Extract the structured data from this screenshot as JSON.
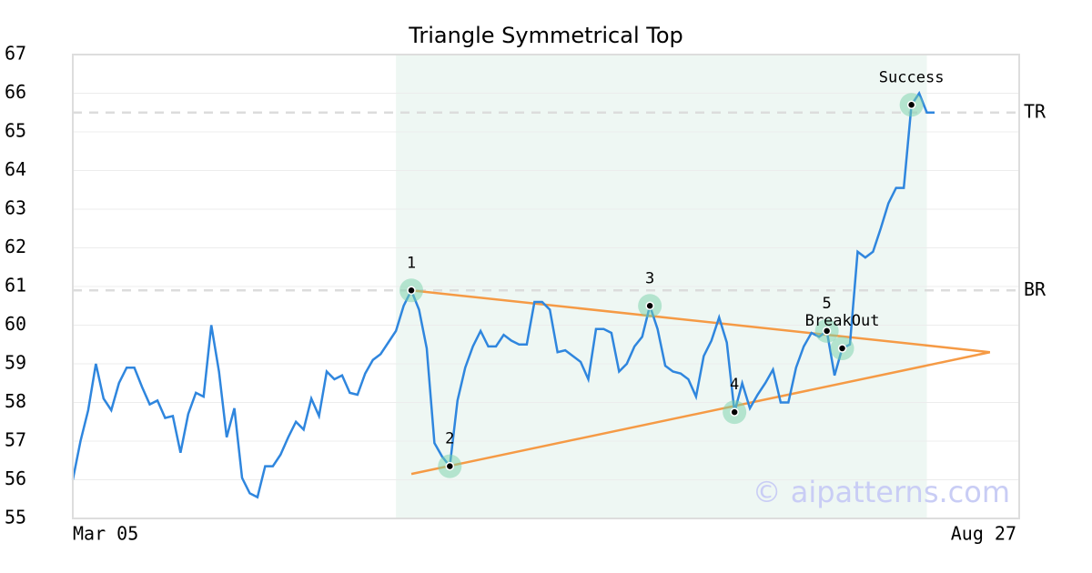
{
  "chart_data": {
    "type": "line",
    "title": "Triangle Symmetrical Top",
    "x": [
      0,
      1,
      2,
      3,
      4,
      5,
      6,
      7,
      8,
      9,
      10,
      11,
      12,
      13,
      14,
      15,
      16,
      17,
      18,
      19,
      20,
      21,
      22,
      23,
      24,
      25,
      26,
      27,
      28,
      29,
      30,
      31,
      32,
      33,
      34,
      35,
      36,
      37,
      38,
      39,
      40,
      41,
      42,
      43,
      44,
      45,
      46,
      47,
      48,
      49,
      50,
      51,
      52,
      53,
      54,
      55,
      56,
      57,
      58,
      59,
      60,
      61,
      62,
      63,
      64,
      65,
      66,
      67,
      68,
      69,
      70,
      71,
      72,
      73,
      74,
      75,
      76,
      77,
      78,
      79,
      80,
      81,
      82,
      83,
      84,
      85,
      86,
      87,
      88,
      89,
      90,
      91,
      92,
      93,
      94,
      95,
      96,
      97,
      98,
      99,
      100,
      101,
      102,
      103,
      104,
      105,
      106,
      107,
      108,
      109,
      110,
      111,
      112
    ],
    "series": [
      {
        "color": "#2f86de",
        "values": [
          56,
          57,
          57.8,
          59,
          58.1,
          57.8,
          58.5,
          58.9,
          58.9,
          58.4,
          57.95,
          58.05,
          57.6,
          57.65,
          56.7,
          57.7,
          58.25,
          58.15,
          60,
          58.8,
          57.1,
          57.85,
          56.05,
          55.65,
          55.55,
          56.35,
          56.35,
          56.65,
          57.1,
          57.5,
          57.3,
          58.1,
          57.65,
          58.8,
          58.6,
          58.7,
          58.25,
          58.2,
          58.75,
          59.1,
          59.25,
          59.55,
          59.85,
          60.5,
          60.9,
          60.4,
          59.4,
          56.95,
          56.6,
          56.35,
          58.05,
          58.9,
          59.45,
          59.85,
          59.45,
          59.45,
          59.75,
          59.6,
          59.5,
          59.5,
          60.6,
          60.6,
          60.4,
          59.3,
          59.35,
          59.2,
          59.05,
          58.6,
          59.9,
          59.9,
          59.8,
          58.8,
          59,
          59.45,
          59.7,
          60.5,
          59.9,
          58.95,
          58.8,
          58.75,
          58.6,
          58.15,
          59.2,
          59.6,
          60.2,
          59.55,
          57.75,
          58.5,
          57.85,
          58.2,
          58.5,
          58.85,
          58,
          58,
          58.9,
          59.45,
          59.8,
          59.7,
          59.85,
          58.7,
          59.4,
          59.5,
          61.9,
          61.75,
          61.9,
          62.5,
          63.15,
          63.55,
          63.55,
          65.7,
          66,
          65.5,
          65.5
        ]
      }
    ],
    "xlim": [
      0,
      123
    ],
    "xticks": [
      {
        "value": 0,
        "label": "Mar 05"
      },
      {
        "value": 123,
        "label": "Aug 27"
      }
    ],
    "ylim": [
      55,
      67
    ],
    "yticks": [
      55,
      56,
      57,
      58,
      59,
      60,
      61,
      62,
      63,
      64,
      65,
      66,
      67
    ],
    "grid": true,
    "shaded_region": {
      "x": [
        42,
        111
      ],
      "color": "#eef7f3"
    },
    "trendlines": {
      "color": "#f59a45",
      "lines": [
        {
          "x": [
            44,
            119.2
          ],
          "y": [
            60.9,
            59.3
          ]
        },
        {
          "x": [
            44,
            119.2
          ],
          "y": [
            56.15,
            59.3
          ]
        }
      ]
    },
    "hlines": [
      {
        "label": "TR",
        "value": 65.5
      },
      {
        "label": "BR",
        "value": 60.9
      }
    ],
    "points": [
      {
        "label": "1",
        "x": 44,
        "y": 60.9
      },
      {
        "label": "2",
        "x": 49,
        "y": 56.35
      },
      {
        "label": "3",
        "x": 75,
        "y": 60.5
      },
      {
        "label": "4",
        "x": 86,
        "y": 57.75
      },
      {
        "label": "5",
        "x": 98,
        "y": 59.85
      },
      {
        "label": "BreakOut",
        "x": 100,
        "y": 59.4
      },
      {
        "label": "Success",
        "x": 109,
        "y": 65.7
      }
    ],
    "watermark": "© aipatterns.com"
  }
}
